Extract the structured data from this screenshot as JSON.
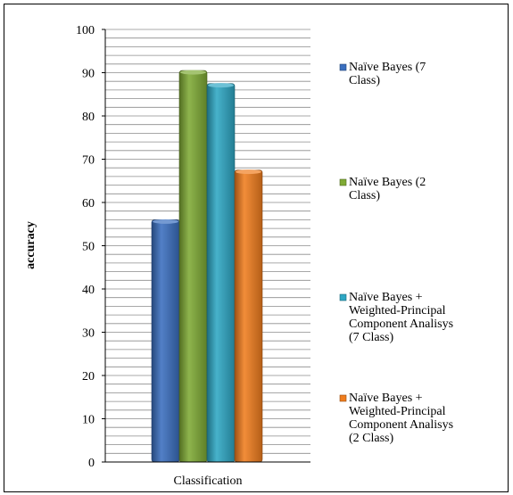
{
  "chart_data": {
    "type": "bar",
    "title": "",
    "xlabel": "Classification",
    "ylabel": "accuracy",
    "categories": [
      "Classification"
    ],
    "ylim": [
      0,
      100
    ],
    "y_major_step": 10,
    "y_minor_step": 2,
    "grid": true,
    "legend_position": "right",
    "series": [
      {
        "name": "Naïve Bayes (7 Class)",
        "legend_lines": [
          "Naïve Bayes (7",
          "Class)"
        ],
        "values": [
          56
        ],
        "color": "#3a6fbf"
      },
      {
        "name": "Naïve Bayes (2 Class)",
        "legend_lines": [
          "Naïve Bayes (2",
          "Class)"
        ],
        "values": [
          90.5
        ],
        "color": "#7faa35"
      },
      {
        "name": "Naïve Bayes + Weighted-Principal Component Analisys (7 Class)",
        "legend_lines": [
          "Naïve Bayes +",
          "Weighted-Principal",
          "Component Analisys",
          "(7 Class)"
        ],
        "values": [
          87.5
        ],
        "color": "#2ea7c4"
      },
      {
        "name": "Naïve Bayes + Weighted-Principal Component Analisys (2 Class)",
        "legend_lines": [
          "Naïve Bayes +",
          "Weighted-Principal",
          "Component Analisys",
          "(2 Class)"
        ],
        "values": [
          67.5
        ],
        "color": "#f07d1e"
      }
    ]
  }
}
